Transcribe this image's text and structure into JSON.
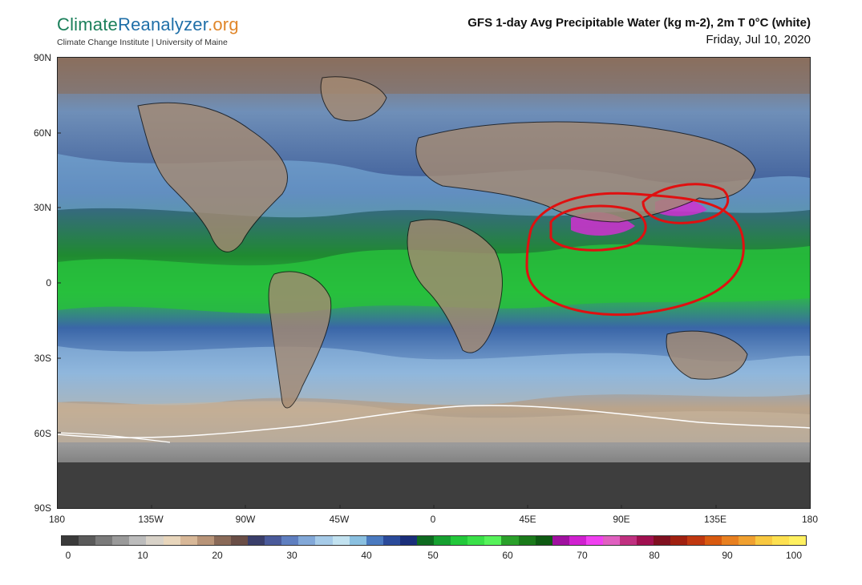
{
  "brand": {
    "name_part1": "Climate",
    "name_part2": "Reanalyzer",
    "name_part3": ".org",
    "subtitle": "Climate Change Institute | University of Maine"
  },
  "title": {
    "main": "GFS 1-day Avg Precipitable Water (kg m-2), 2m T 0°C (white)",
    "date": "Friday, Jul 10, 2020"
  },
  "map": {
    "lat_labels": [
      "90N",
      "60N",
      "30N",
      "0",
      "30S",
      "60S",
      "90S"
    ],
    "lon_labels": [
      "180",
      "135W",
      "90W",
      "45W",
      "0",
      "45E",
      "90E",
      "135E",
      "180"
    ],
    "annotations": [
      {
        "kind": "freehand-circle",
        "color": "#e01010",
        "region": "Indian Ocean / Maritime Continent"
      },
      {
        "kind": "freehand-circle",
        "color": "#e01010",
        "region": "South Asia / Bay of Bengal"
      },
      {
        "kind": "freehand-circle",
        "color": "#e01010",
        "region": "Southern China"
      }
    ]
  },
  "colorbar": {
    "labels": [
      "0",
      "10",
      "20",
      "30",
      "40",
      "50",
      "60",
      "70",
      "80",
      "90",
      "100"
    ],
    "colors": [
      "#3a3a3a",
      "#5a5a5a",
      "#7a7a7a",
      "#9a9a9a",
      "#bcbcbc",
      "#d8d2c8",
      "#e8d6bc",
      "#d8b898",
      "#b89478",
      "#8a6a58",
      "#6a4e46",
      "#3a3e6a",
      "#4a5a9a",
      "#5f7fc0",
      "#82a8d8",
      "#a6cbe8",
      "#c2e2f0",
      "#8ac0e0",
      "#4a7ac0",
      "#2a4a9a",
      "#1a2e7a",
      "#0e6a20",
      "#16a030",
      "#22c83a",
      "#3ae048",
      "#56f25a",
      "#2aa02a",
      "#1a7a1a",
      "#0e5a12",
      "#a010a0",
      "#d020d0",
      "#f040f0",
      "#e060c0",
      "#c03080",
      "#a01050",
      "#801020",
      "#a02010",
      "#c03810",
      "#d85a10",
      "#e88020",
      "#f0a030",
      "#f8c840",
      "#fde050",
      "#fff060"
    ]
  }
}
